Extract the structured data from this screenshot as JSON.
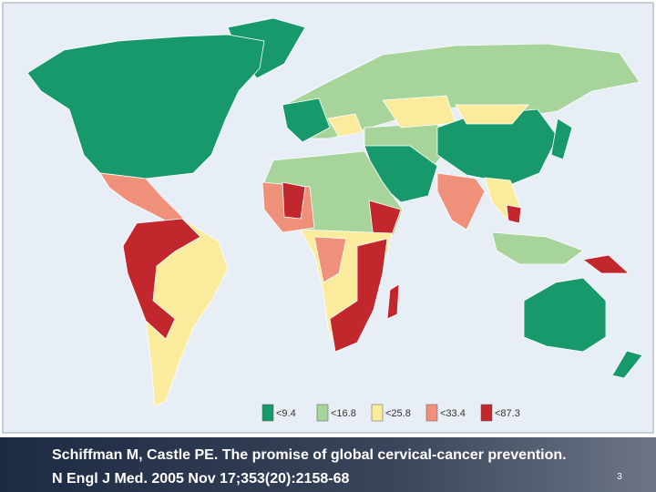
{
  "map": {
    "legend": [
      {
        "label": "<9.4",
        "color": "#17996b"
      },
      {
        "label": "<16.8",
        "color": "#a6d49b"
      },
      {
        "label": "<25.8",
        "color": "#fbeb9c"
      },
      {
        "label": "<33.4",
        "color": "#ef917a"
      },
      {
        "label": "<87.3",
        "color": "#c1272d"
      }
    ]
  },
  "citation": {
    "line1": "Schiffman M, Castle PE. The promise of global cervical-cancer prevention.",
    "line2": "N Engl J Med. 2005 Nov 17;353(20):2158-68"
  },
  "slide_number": "3"
}
